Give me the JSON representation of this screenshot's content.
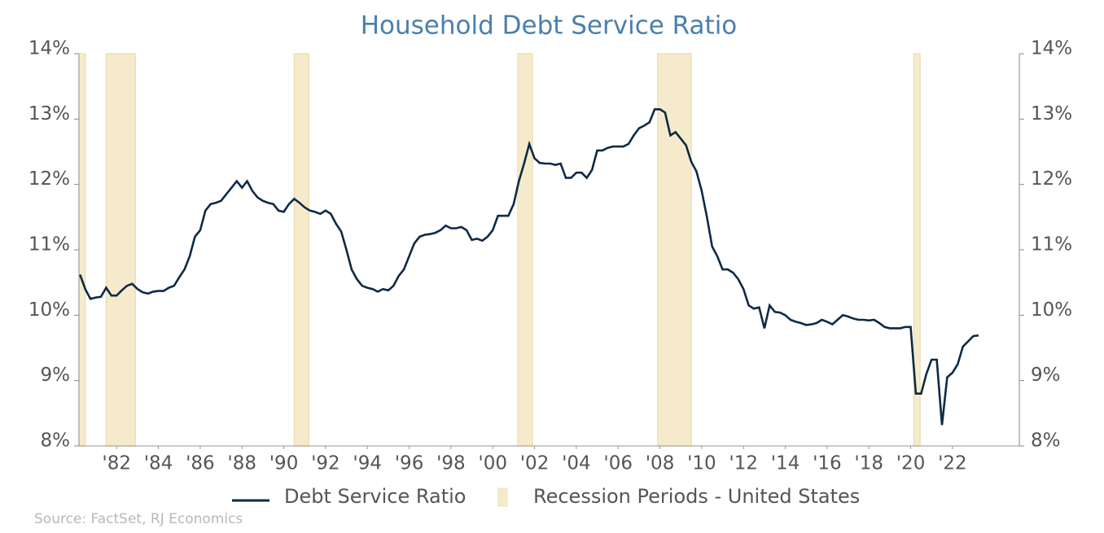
{
  "chart_data": {
    "type": "line",
    "title": "Household Debt Service Ratio",
    "source": "Source: FactSet, RJ Economics",
    "x": [
      1980.25,
      1980.5,
      1980.75,
      1981,
      1981.25,
      1981.5,
      1981.75,
      1982,
      1982.25,
      1982.5,
      1982.75,
      1983,
      1983.25,
      1983.5,
      1983.75,
      1984,
      1984.25,
      1984.5,
      1984.75,
      1985,
      1985.25,
      1985.5,
      1985.75,
      1986,
      1986.25,
      1986.5,
      1986.75,
      1987,
      1987.25,
      1987.5,
      1987.75,
      1988,
      1988.25,
      1988.5,
      1988.75,
      1989,
      1989.25,
      1989.5,
      1989.75,
      1990,
      1990.25,
      1990.5,
      1990.75,
      1991,
      1991.25,
      1991.5,
      1991.75,
      1992,
      1992.25,
      1992.5,
      1992.75,
      1993,
      1993.25,
      1993.5,
      1993.75,
      1994,
      1994.25,
      1994.5,
      1994.75,
      1995,
      1995.25,
      1995.5,
      1995.75,
      1996,
      1996.25,
      1996.5,
      1996.75,
      1997,
      1997.25,
      1997.5,
      1997.75,
      1998,
      1998.25,
      1998.5,
      1998.75,
      1999,
      1999.25,
      1999.5,
      1999.75,
      2000,
      2000.25,
      2000.5,
      2000.75,
      2001,
      2001.25,
      2001.5,
      2001.75,
      2002,
      2002.25,
      2002.5,
      2002.75,
      2003,
      2003.25,
      2003.5,
      2003.75,
      2004,
      2004.25,
      2004.5,
      2004.75,
      2005,
      2005.25,
      2005.5,
      2005.75,
      2006,
      2006.25,
      2006.5,
      2006.75,
      2007,
      2007.25,
      2007.5,
      2007.75,
      2008,
      2008.25,
      2008.5,
      2008.75,
      2009,
      2009.25,
      2009.5,
      2009.75,
      2010,
      2010.25,
      2010.5,
      2010.75,
      2011,
      2011.25,
      2011.5,
      2011.75,
      2012,
      2012.25,
      2012.5,
      2012.75,
      2013,
      2013.25,
      2013.5,
      2013.75,
      2014,
      2014.25,
      2014.5,
      2014.75,
      2015,
      2015.25,
      2015.5,
      2015.75,
      2016,
      2016.25,
      2016.5,
      2016.75,
      2017,
      2017.25,
      2017.5,
      2017.75,
      2018,
      2018.25,
      2018.5,
      2018.75,
      2019,
      2019.25,
      2019.5,
      2019.75,
      2020,
      2020.25,
      2020.5,
      2020.75,
      2021,
      2021.25,
      2021.5,
      2021.75,
      2022,
      2022.25,
      2022.5,
      2022.75,
      2023,
      2023.25
    ],
    "series": [
      {
        "name": "Debt Service Ratio",
        "color": "#0d2a45",
        "values": [
          10.62,
          10.4,
          10.25,
          10.27,
          10.28,
          10.42,
          10.3,
          10.3,
          10.38,
          10.45,
          10.48,
          10.4,
          10.35,
          10.33,
          10.36,
          10.37,
          10.37,
          10.42,
          10.45,
          10.58,
          10.7,
          10.9,
          11.2,
          11.3,
          11.6,
          11.7,
          11.72,
          11.75,
          11.85,
          11.95,
          12.05,
          11.95,
          12.05,
          11.9,
          11.8,
          11.75,
          11.72,
          11.7,
          11.6,
          11.58,
          11.7,
          11.78,
          11.72,
          11.65,
          11.6,
          11.58,
          11.55,
          11.6,
          11.55,
          11.4,
          11.28,
          11.0,
          10.7,
          10.55,
          10.45,
          10.42,
          10.4,
          10.36,
          10.4,
          10.38,
          10.45,
          10.6,
          10.7,
          10.9,
          11.1,
          11.2,
          11.23,
          11.24,
          11.26,
          11.3,
          11.37,
          11.33,
          11.33,
          11.35,
          11.3,
          11.15,
          11.17,
          11.14,
          11.2,
          11.3,
          11.52,
          11.52,
          11.52,
          11.7,
          12.05,
          12.32,
          12.62,
          12.4,
          12.33,
          12.32,
          12.32,
          12.3,
          12.32,
          12.1,
          12.1,
          12.18,
          12.18,
          12.1,
          12.22,
          12.52,
          12.52,
          12.56,
          12.58,
          12.58,
          12.58,
          12.62,
          12.75,
          12.86,
          12.9,
          12.95,
          13.15,
          13.15,
          13.1,
          12.75,
          12.8,
          12.7,
          12.6,
          12.35,
          12.2,
          11.9,
          11.5,
          11.05,
          10.9,
          10.7,
          10.7,
          10.65,
          10.55,
          10.4,
          10.15,
          10.1,
          10.12,
          9.8,
          10.15,
          10.05,
          10.04,
          10.0,
          9.93,
          9.9,
          9.88,
          9.85,
          9.86,
          9.88,
          9.93,
          9.9,
          9.86,
          9.93,
          10.0,
          9.98,
          9.95,
          9.93,
          9.93,
          9.92,
          9.93,
          9.88,
          9.82,
          9.8,
          9.8,
          9.8,
          9.82,
          9.82,
          8.8,
          8.8,
          9.1,
          9.32,
          9.32,
          8.32,
          9.05,
          9.12,
          9.25,
          9.52,
          9.6,
          9.68,
          9.69
        ]
      },
      {
        "name": "Recession Periods - United States",
        "color": "#f5ebcc",
        "type": "span",
        "periods": [
          [
            1980.0,
            1980.5
          ],
          [
            1981.5,
            1982.9
          ],
          [
            1990.5,
            1991.2
          ],
          [
            2001.2,
            2001.9
          ],
          [
            2007.9,
            2009.5
          ],
          [
            2020.15,
            2020.45
          ]
        ]
      }
    ],
    "xlim": [
      1980.2,
      2025.2
    ],
    "xticks": [
      {
        "value": 1982,
        "label": "'82"
      },
      {
        "value": 1984,
        "label": "'84"
      },
      {
        "value": 1986,
        "label": "'86"
      },
      {
        "value": 1988,
        "label": "'88"
      },
      {
        "value": 1990,
        "label": "'90"
      },
      {
        "value": 1992,
        "label": "'92"
      },
      {
        "value": 1994,
        "label": "'94"
      },
      {
        "value": 1996,
        "label": "'96"
      },
      {
        "value": 1998,
        "label": "'98"
      },
      {
        "value": 2000,
        "label": "'00"
      },
      {
        "value": 2002,
        "label": "'02"
      },
      {
        "value": 2004,
        "label": "'04"
      },
      {
        "value": 2006,
        "label": "'06"
      },
      {
        "value": 2008,
        "label": "'08"
      },
      {
        "value": 2010,
        "label": "'10"
      },
      {
        "value": 2012,
        "label": "'12"
      },
      {
        "value": 2014,
        "label": "'14"
      },
      {
        "value": 2016,
        "label": "'16"
      },
      {
        "value": 2018,
        "label": "'18"
      },
      {
        "value": 2020,
        "label": "'20"
      },
      {
        "value": 2022,
        "label": "'22"
      }
    ],
    "ylim": [
      8,
      14
    ],
    "yticks": [
      {
        "value": 8,
        "label": "8%"
      },
      {
        "value": 9,
        "label": "9%"
      },
      {
        "value": 10,
        "label": "10%"
      },
      {
        "value": 11,
        "label": "11%"
      },
      {
        "value": 12,
        "label": "12%"
      },
      {
        "value": 13,
        "label": "13%"
      },
      {
        "value": 14,
        "label": "14%"
      }
    ],
    "y2lim": [
      8,
      14
    ],
    "y2ticks": [
      {
        "value": 8,
        "label": "8%"
      },
      {
        "value": 9,
        "label": "9%"
      },
      {
        "value": 10,
        "label": "10%"
      },
      {
        "value": 11,
        "label": "11%"
      },
      {
        "value": 12,
        "label": "12%"
      },
      {
        "value": 13,
        "label": "13%"
      },
      {
        "value": 14,
        "label": "14%"
      }
    ],
    "legend": "bottom"
  }
}
